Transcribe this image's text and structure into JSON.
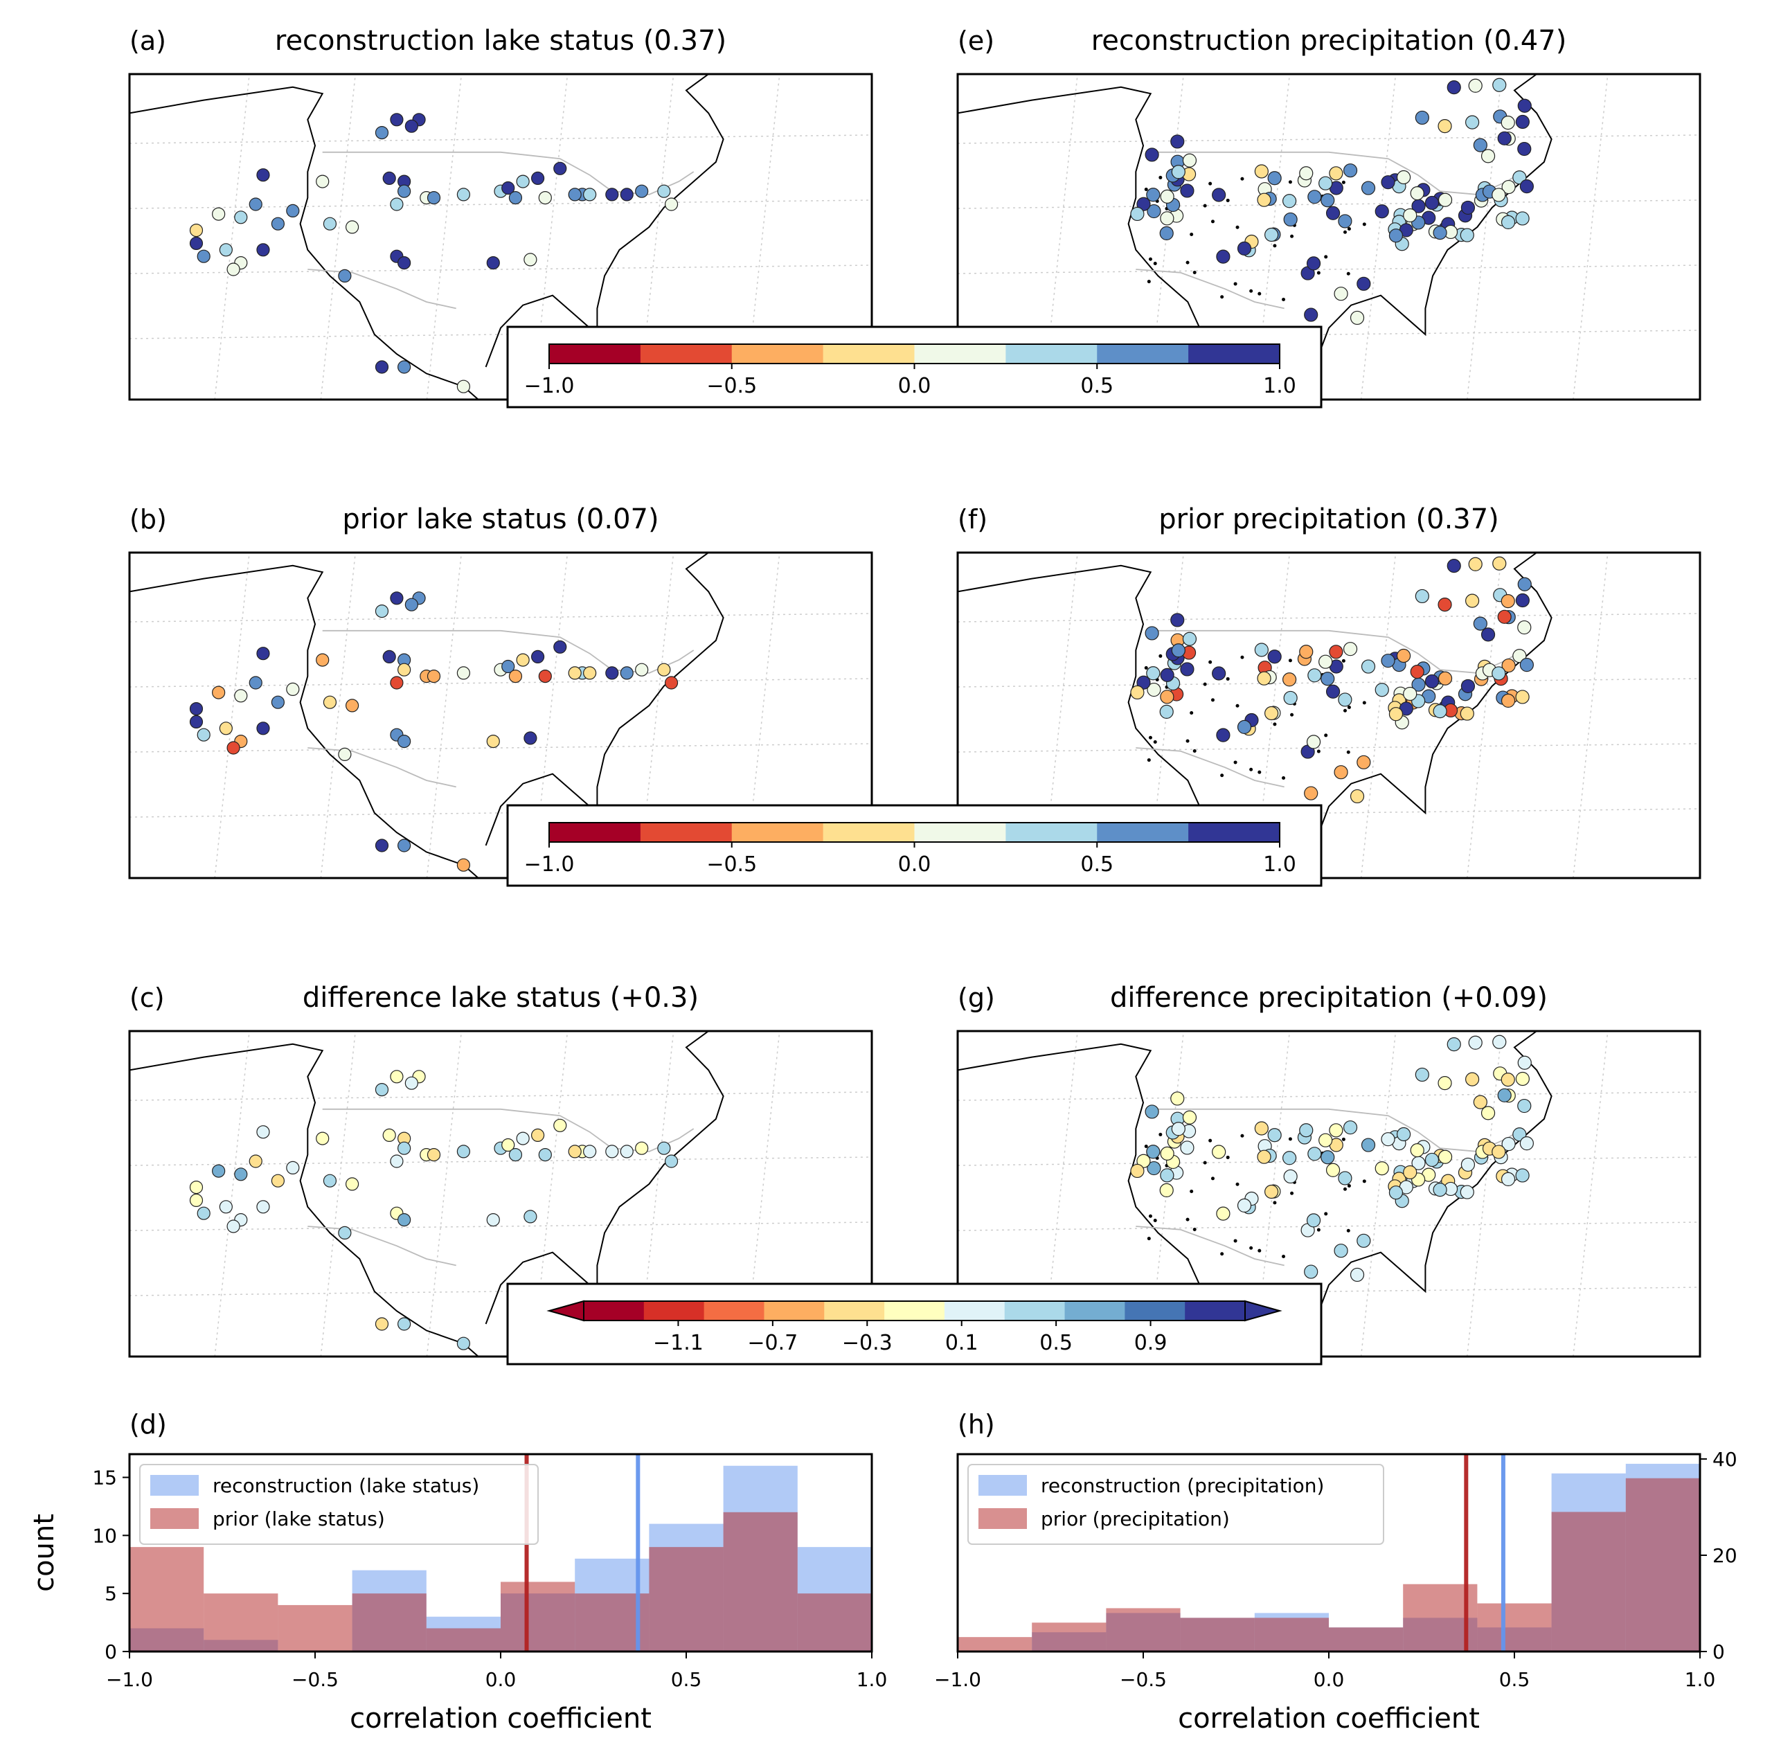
{
  "colormap": [
    "#a50026",
    "#e34a33",
    "#fdae61",
    "#fee090",
    "#f0f9e8",
    "#abd9e9",
    "#5e8fc8",
    "#313695"
  ],
  "diff_colormap": [
    "#a50026",
    "#d73027",
    "#f46d43",
    "#fdae61",
    "#fee090",
    "#ffffbf",
    "#e0f3f8",
    "#abd9e9",
    "#74add1",
    "#4575b4",
    "#313695"
  ],
  "colorbar": {
    "ticks": [
      "−1.0",
      "−0.5",
      "0.0",
      "0.5",
      "1.0"
    ],
    "tick_values": [
      -1.0,
      -0.5,
      0.0,
      0.5,
      1.0
    ]
  },
  "diff_colorbar": {
    "ticks": [
      "−1.1",
      "−0.7",
      "−0.3",
      "0.1",
      "0.5",
      "0.9"
    ],
    "tick_values": [
      -1.1,
      -0.7,
      -0.3,
      0.1,
      0.5,
      0.9
    ],
    "range": [
      -1.5,
      1.3
    ]
  },
  "maps": [
    {
      "letter": "(a)",
      "title": "reconstruction lake status (0.37)",
      "kind": "lake",
      "mode": "recon"
    },
    {
      "letter": "(b)",
      "title": "prior lake status (0.07)",
      "kind": "lake",
      "mode": "prior"
    },
    {
      "letter": "(c)",
      "title": "difference lake status (+0.3)",
      "kind": "lake",
      "mode": "diff"
    },
    {
      "letter": "(e)",
      "title": "reconstruction precipitation (0.47)",
      "kind": "precip",
      "mode": "recon"
    },
    {
      "letter": "(f)",
      "title": "prior precipitation (0.37)",
      "kind": "precip",
      "mode": "prior"
    },
    {
      "letter": "(g)",
      "title": "difference precipitation (+0.09)",
      "kind": "precip",
      "mode": "diff"
    }
  ],
  "chart_data": [
    {
      "type": "bar",
      "panel": "(d)",
      "xlabel": "correlation coefficient",
      "ylabel": "count",
      "xlim": [
        -1.0,
        1.0
      ],
      "ylim": [
        0,
        17
      ],
      "x_ticks": [
        "−1.0",
        "−0.5",
        "0.0",
        "0.5",
        "1.0"
      ],
      "y_ticks": [
        "0",
        "5",
        "10",
        "15"
      ],
      "bin_edges": [
        -1.0,
        -0.8,
        -0.6,
        -0.4,
        -0.2,
        0.0,
        0.2,
        0.4,
        0.6,
        0.8,
        1.0
      ],
      "series": [
        {
          "name": "reconstruction (lake status)",
          "color": "#6495ed",
          "values": [
            2,
            1,
            0,
            7,
            3,
            5,
            8,
            11,
            16,
            9
          ],
          "mean_line": 0.37
        },
        {
          "name": "prior (lake status)",
          "color": "#b22222",
          "values": [
            9,
            5,
            4,
            5,
            2,
            6,
            5,
            9,
            12,
            5
          ],
          "mean_line": 0.07
        }
      ],
      "legend": "top-left"
    },
    {
      "type": "bar",
      "panel": "(h)",
      "xlabel": "correlation coefficient",
      "ylabel": "",
      "xlim": [
        -1.0,
        1.0
      ],
      "ylim": [
        0,
        41
      ],
      "x_ticks": [
        "−1.0",
        "−0.5",
        "0.0",
        "0.5",
        "1.0"
      ],
      "y_ticks": [
        "0",
        "20",
        "40"
      ],
      "bin_edges": [
        -1.0,
        -0.8,
        -0.6,
        -0.4,
        -0.2,
        0.0,
        0.2,
        0.4,
        0.6,
        0.8,
        1.0
      ],
      "series": [
        {
          "name": "reconstruction (precipitation)",
          "color": "#6495ed",
          "values": [
            0,
            4,
            8,
            7,
            8,
            5,
            7,
            5,
            37,
            39
          ],
          "mean_line": 0.47
        },
        {
          "name": "prior (precipitation)",
          "color": "#b22222",
          "values": [
            3,
            6,
            9,
            7,
            7,
            5,
            14,
            10,
            29,
            36
          ],
          "mean_line": 0.37
        }
      ],
      "legend": "top-left"
    }
  ]
}
